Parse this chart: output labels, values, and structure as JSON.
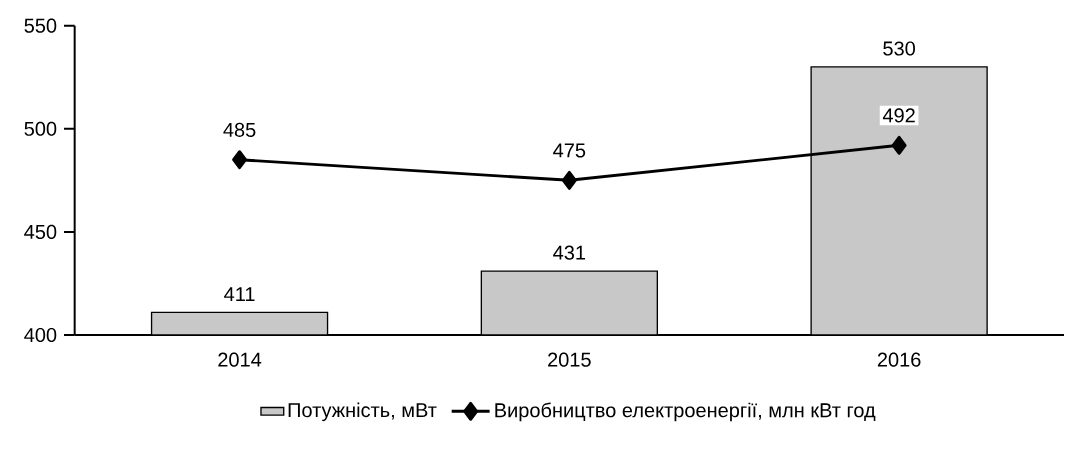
{
  "chart_data": {
    "type": "bar",
    "categories": [
      "2014",
      "2015",
      "2016"
    ],
    "series": [
      {
        "name": "Потужність, мВт",
        "color": "#c8c8c8",
        "values": [
          411,
          431,
          530
        ]
      },
      {
        "name": "Виробництво електроенергії, млн кВт год",
        "type": "line",
        "color": "#000000",
        "marker": "diamond",
        "line_style": "solid",
        "values": [
          485,
          475,
          492
        ]
      }
    ],
    "ylim": [
      400,
      550
    ],
    "yticks": [
      400,
      450,
      500,
      550
    ],
    "data_labels": true,
    "legend": "bottom",
    "grid": false
  }
}
